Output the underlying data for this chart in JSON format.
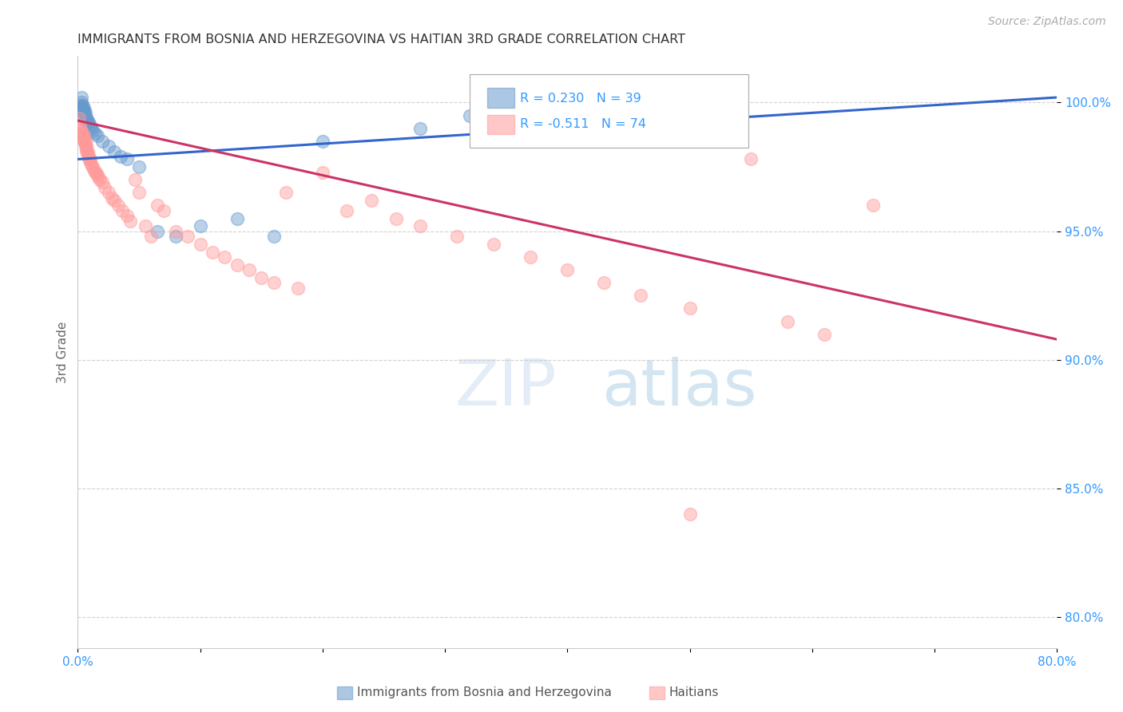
{
  "title": "IMMIGRANTS FROM BOSNIA AND HERZEGOVINA VS HAITIAN 3RD GRADE CORRELATION CHART",
  "source": "Source: ZipAtlas.com",
  "ylabel": "3rd Grade",
  "x_min": 0.0,
  "x_max": 0.8,
  "y_min": 0.788,
  "y_max": 1.018,
  "x_ticks": [
    0.0,
    0.1,
    0.2,
    0.3,
    0.4,
    0.5,
    0.6,
    0.7,
    0.8
  ],
  "x_tick_labels": [
    "0.0%",
    "",
    "",
    "",
    "",
    "",
    "",
    "",
    "80.0%"
  ],
  "y_ticks": [
    0.8,
    0.85,
    0.9,
    0.95,
    1.0
  ],
  "y_tick_labels": [
    "80.0%",
    "85.0%",
    "90.0%",
    "95.0%",
    "100.0%"
  ],
  "blue_R": 0.23,
  "blue_N": 39,
  "pink_R": -0.511,
  "pink_N": 74,
  "blue_color": "#6699cc",
  "pink_color": "#ff9999",
  "blue_line_color": "#3366cc",
  "pink_line_color": "#cc3366",
  "background_color": "#ffffff",
  "blue_line_x0": 0.0,
  "blue_line_y0": 0.978,
  "blue_line_x1": 0.8,
  "blue_line_y1": 1.002,
  "pink_line_x0": 0.0,
  "pink_line_y0": 0.993,
  "pink_line_x1": 0.8,
  "pink_line_y1": 0.908,
  "blue_x": [
    0.001,
    0.002,
    0.002,
    0.003,
    0.003,
    0.003,
    0.004,
    0.004,
    0.004,
    0.005,
    0.005,
    0.005,
    0.006,
    0.006,
    0.006,
    0.007,
    0.007,
    0.008,
    0.008,
    0.009,
    0.01,
    0.011,
    0.012,
    0.014,
    0.016,
    0.02,
    0.025,
    0.03,
    0.035,
    0.04,
    0.05,
    0.065,
    0.08,
    0.1,
    0.13,
    0.16,
    0.2,
    0.28,
    0.32
  ],
  "blue_y": [
    0.995,
    0.998,
    0.997,
    1.002,
    1.0,
    0.999,
    0.998,
    0.997,
    0.999,
    0.998,
    0.997,
    0.996,
    0.996,
    0.995,
    0.994,
    0.994,
    0.993,
    0.993,
    0.992,
    0.992,
    0.991,
    0.99,
    0.989,
    0.988,
    0.987,
    0.985,
    0.983,
    0.981,
    0.979,
    0.978,
    0.975,
    0.95,
    0.948,
    0.952,
    0.955,
    0.948,
    0.985,
    0.99,
    0.995
  ],
  "pink_x": [
    0.001,
    0.002,
    0.002,
    0.003,
    0.003,
    0.004,
    0.004,
    0.004,
    0.005,
    0.005,
    0.005,
    0.006,
    0.006,
    0.006,
    0.007,
    0.007,
    0.007,
    0.008,
    0.008,
    0.009,
    0.009,
    0.01,
    0.01,
    0.011,
    0.012,
    0.013,
    0.014,
    0.015,
    0.016,
    0.017,
    0.018,
    0.02,
    0.022,
    0.025,
    0.028,
    0.03,
    0.033,
    0.036,
    0.04,
    0.043,
    0.047,
    0.05,
    0.055,
    0.06,
    0.065,
    0.07,
    0.08,
    0.09,
    0.1,
    0.11,
    0.12,
    0.13,
    0.14,
    0.15,
    0.16,
    0.17,
    0.18,
    0.2,
    0.22,
    0.24,
    0.26,
    0.28,
    0.31,
    0.34,
    0.37,
    0.4,
    0.43,
    0.46,
    0.5,
    0.55,
    0.58,
    0.61,
    0.65,
    0.5
  ],
  "pink_y": [
    0.994,
    0.991,
    0.99,
    0.989,
    0.988,
    0.988,
    0.987,
    0.986,
    0.987,
    0.986,
    0.985,
    0.985,
    0.984,
    0.983,
    0.983,
    0.982,
    0.981,
    0.981,
    0.98,
    0.979,
    0.978,
    0.978,
    0.977,
    0.976,
    0.975,
    0.974,
    0.973,
    0.973,
    0.972,
    0.971,
    0.97,
    0.969,
    0.967,
    0.965,
    0.963,
    0.962,
    0.96,
    0.958,
    0.956,
    0.954,
    0.97,
    0.965,
    0.952,
    0.948,
    0.96,
    0.958,
    0.95,
    0.948,
    0.945,
    0.942,
    0.94,
    0.937,
    0.935,
    0.932,
    0.93,
    0.965,
    0.928,
    0.973,
    0.958,
    0.962,
    0.955,
    0.952,
    0.948,
    0.945,
    0.94,
    0.935,
    0.93,
    0.925,
    0.92,
    0.978,
    0.915,
    0.91,
    0.96,
    0.84
  ]
}
